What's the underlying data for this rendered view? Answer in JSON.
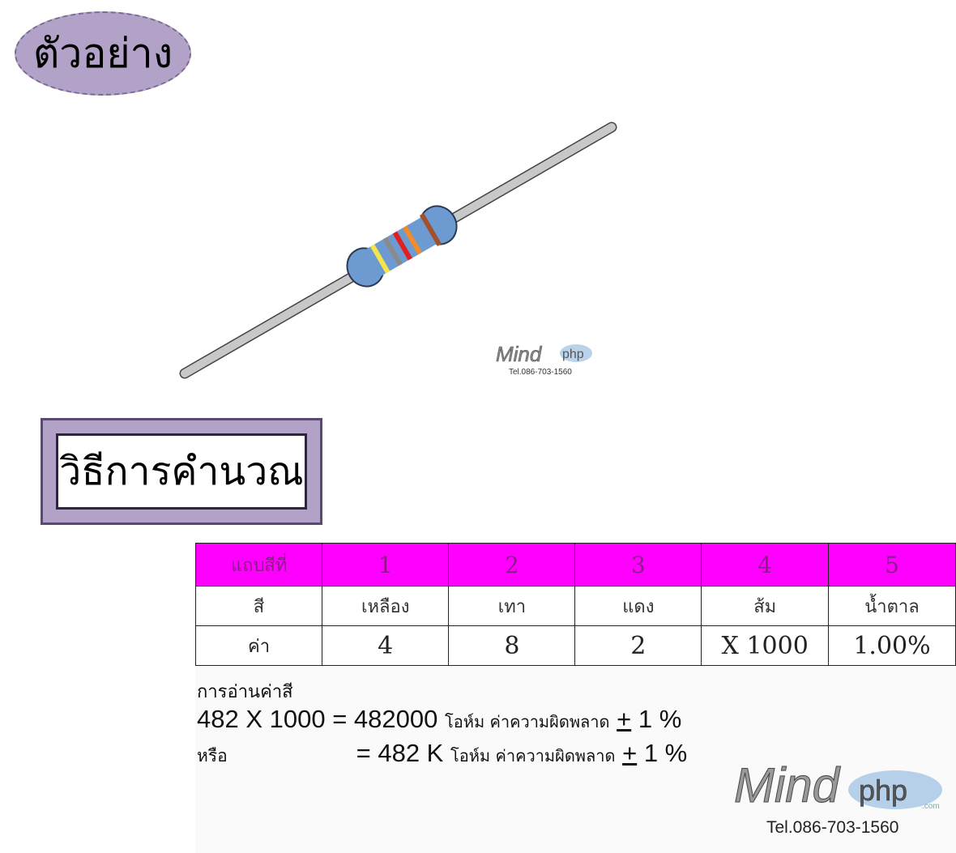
{
  "badge": {
    "label": "ตัวอย่าง"
  },
  "method": {
    "title": "วิธีการคำนวณ"
  },
  "watermark": {
    "brand": "Mind",
    "brand_suffix": "php",
    "domain_hint": ".com",
    "phone": "Tel.086-703-1560"
  },
  "table": {
    "header": [
      "แถบสีที่",
      "1",
      "2",
      "3",
      "4",
      "5"
    ],
    "colors": [
      "สี",
      "เหลือง",
      "เทา",
      "แดง",
      "ส้ม",
      "น้ำตาล"
    ],
    "values": [
      "ค่า",
      "4",
      "8",
      "2",
      "X 1000",
      "1.00%"
    ]
  },
  "calc": {
    "title": "การอ่านค่าสี",
    "line1_expr": "482 X 1000 = 482000",
    "line1_unit": "โอห์ม ค่าความผิดพลาด",
    "or_label": "หรือ",
    "line2_expr": "= 482 K",
    "line2_unit": "โอห์ม ค่าความผิดพลาด",
    "pm": "+",
    "tolerance": "1 %"
  },
  "colors": {
    "badge_fill": "#b3a2c7",
    "header_fill": "#ff00ff",
    "resistor_body": "#6d9bd1",
    "lead": "#c8c8c8"
  }
}
